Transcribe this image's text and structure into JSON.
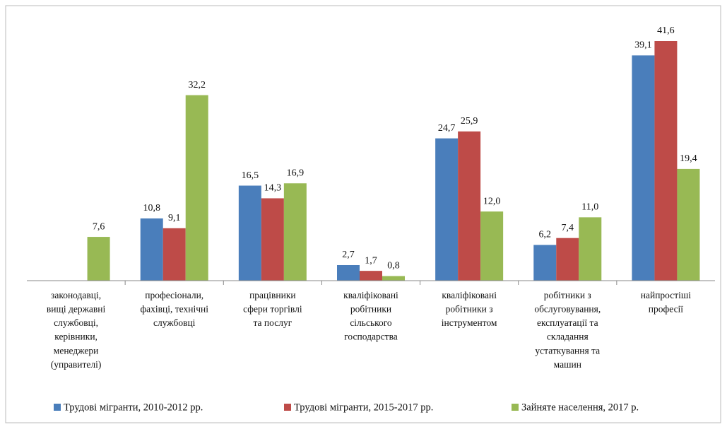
{
  "chart_data": {
    "type": "bar",
    "categories": [
      "законодавці,\nвищі державні\nслужбовці,\nкерівники,\nменеджери\n(управителі)",
      "професіонали,\nфахівці, технічні\nслужбовці",
      "працівники\nсфери торгівлі\nта послуг",
      "кваліфіковані\nробітники\nсільського\nгосподарства",
      "кваліфіковані\nробітники з\nінструментом",
      "робітники з\nобслуговування,\nексплуатації та\nскладання\nустаткування та\nмашин",
      "найпростіші\nпрофесії"
    ],
    "series": [
      {
        "name": "Трудові мігранти, 2010-2012 рр.",
        "color": "#4a7ebb",
        "values": [
          null,
          10.8,
          16.5,
          2.7,
          24.7,
          6.2,
          39.1
        ],
        "value_labels": [
          null,
          "10,8",
          "16,5",
          "2,7",
          "24,7",
          "6,2",
          "39,1"
        ]
      },
      {
        "name": "Трудові мігранти, 2015-2017 рр.",
        "color": "#be4b48",
        "values": [
          null,
          9.1,
          14.3,
          1.7,
          25.9,
          7.4,
          41.6
        ],
        "value_labels": [
          null,
          "9,1",
          "14,3",
          "1,7",
          "25,9",
          "7,4",
          "41,6"
        ]
      },
      {
        "name": "Зайняте населення, 2017 р.",
        "color": "#98b954",
        "values": [
          7.6,
          32.2,
          16.9,
          0.8,
          12.0,
          11.0,
          19.4
        ],
        "value_labels": [
          "7,6",
          "32,2",
          "16,9",
          "0,8",
          "12,0",
          "11,0",
          "19,4"
        ]
      }
    ],
    "legend": "bottom"
  }
}
